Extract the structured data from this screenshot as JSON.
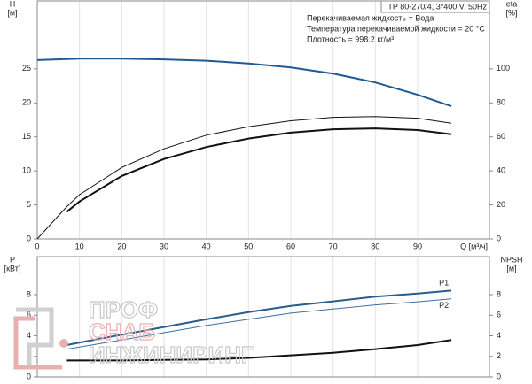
{
  "chart_data": [
    {
      "type": "line",
      "model": "TP 80-270/4, 3*400 V, 50Hz",
      "notes": [
        "Перекачиваемая жидкость = Вода",
        "Температура перекачиваемой жидкости = 20 °C",
        "Плотность = 998.2 кг/м³"
      ],
      "y_label": "H",
      "y_unit": "[м]",
      "y2_label": "eta",
      "y2_unit": "[%]",
      "x_label": "Q [м³/ч]",
      "x": [
        0,
        7,
        10,
        20,
        30,
        40,
        50,
        60,
        70,
        80,
        90,
        98
      ],
      "xlim": [
        0,
        107
      ],
      "xticks": [
        0,
        10,
        20,
        30,
        40,
        50,
        60,
        70,
        80,
        90
      ],
      "ylim": [
        0,
        35
      ],
      "yticks": [
        0,
        5,
        10,
        15,
        20,
        25
      ],
      "y2lim": [
        0,
        140
      ],
      "y2ticks": [
        0,
        20,
        40,
        60,
        80,
        100
      ],
      "series": [
        {
          "color": "#1f5a96",
          "width": 2,
          "axis": "y",
          "values": [
            26.3,
            26.45,
            26.5,
            26.5,
            26.4,
            26.2,
            25.8,
            25.2,
            24.3,
            23.0,
            21.2,
            19.5
          ]
        },
        {
          "color": "#111111",
          "width": 1,
          "axis": "y2",
          "values": [
            0,
            19,
            26,
            42,
            53,
            61,
            66,
            69.5,
            71.5,
            72,
            71,
            68
          ]
        },
        {
          "color": "#111111",
          "width": 2,
          "axis": "y2",
          "values": [
            null,
            16,
            22,
            37,
            47,
            54,
            59,
            62.5,
            64.5,
            65,
            64,
            61.5
          ]
        }
      ]
    },
    {
      "type": "line",
      "y_label": "P",
      "y_unit": "[кВт]",
      "y2_label": "NPSH",
      "y2_unit": "[м]",
      "x": [
        7,
        10,
        20,
        30,
        40,
        50,
        60,
        70,
        80,
        90,
        98
      ],
      "xlim": [
        0,
        107
      ],
      "ylim": [
        0,
        11.7
      ],
      "yticks": [
        0,
        2,
        4,
        6,
        8
      ],
      "y2lim": [
        0,
        11.7
      ],
      "y2ticks": [
        0,
        2,
        4,
        6,
        8
      ],
      "series": [
        {
          "name": "P1",
          "color": "#2a5c8c",
          "width": 2,
          "axis": "y",
          "values": [
            3.1,
            3.35,
            4.1,
            4.85,
            5.6,
            6.3,
            6.9,
            7.35,
            7.8,
            8.1,
            8.4
          ]
        },
        {
          "name": "P2",
          "color": "#3c6fa0",
          "width": 1,
          "axis": "y",
          "values": [
            2.7,
            2.9,
            3.6,
            4.3,
            5.0,
            5.6,
            6.2,
            6.6,
            7.0,
            7.3,
            7.6
          ]
        },
        {
          "color": "#111111",
          "width": 2,
          "axis": "y2",
          "values": [
            1.6,
            1.6,
            1.6,
            1.65,
            1.7,
            1.85,
            2.1,
            2.35,
            2.7,
            3.1,
            3.6
          ]
        }
      ]
    }
  ],
  "watermark": [
    "ПРОФ",
    "СНАБ",
    "ИНЖИНИРИНГ"
  ]
}
